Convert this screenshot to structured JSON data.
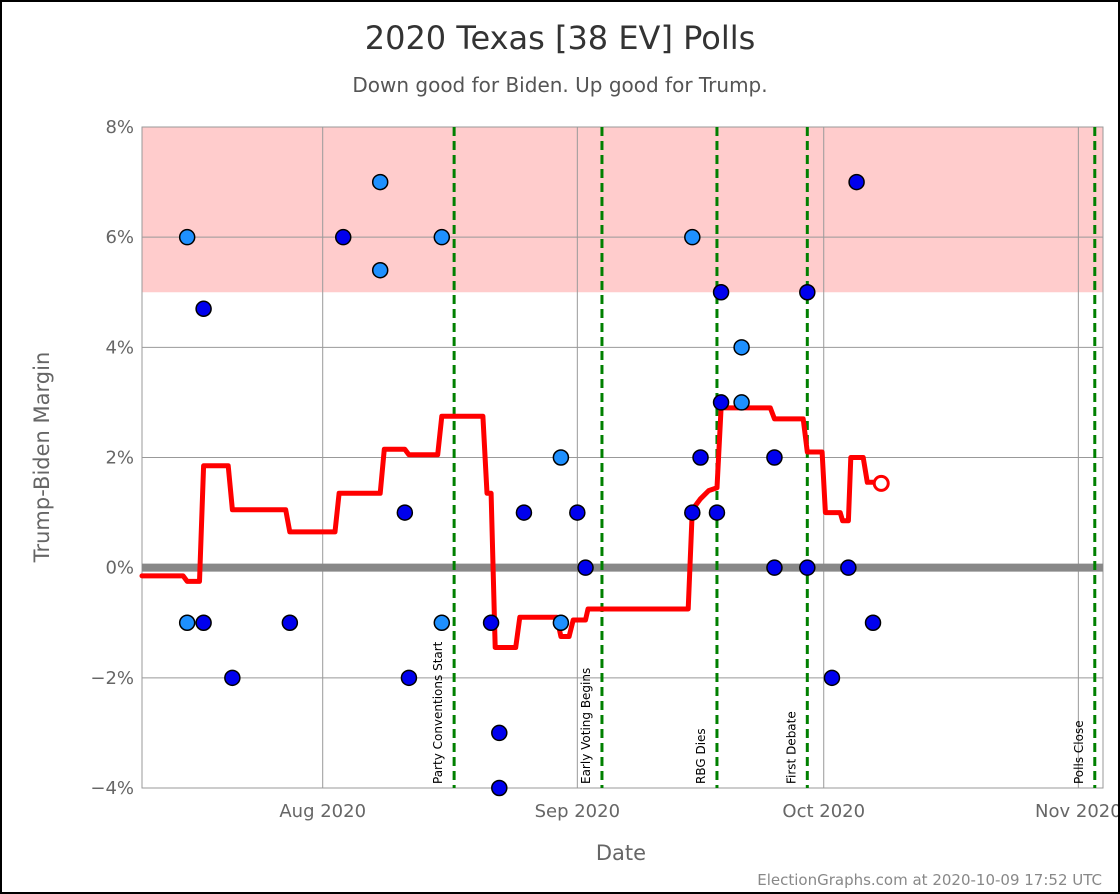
{
  "chart_data": {
    "type": "scatter",
    "title": "2020 Texas [38 EV] Polls",
    "subtitle": "Down good for Biden. Up good for Trump.",
    "xlabel": "Date",
    "ylabel": "Trump-Biden Margin",
    "credit": "ElectionGraphs.com at 2020-10-09 17:52 UTC",
    "x_range": [
      "2020-07-10",
      "2020-11-04"
    ],
    "ylim": [
      -4,
      8
    ],
    "y_ticks": [
      {
        "value": 8,
        "label": "8%"
      },
      {
        "value": 6,
        "label": "6%"
      },
      {
        "value": 4,
        "label": "4%"
      },
      {
        "value": 2,
        "label": "2%"
      },
      {
        "value": 0,
        "label": "0%"
      },
      {
        "value": -2,
        "label": "−2%"
      },
      {
        "value": -4,
        "label": "−4%"
      }
    ],
    "x_ticks": [
      {
        "date": "2020-08-01",
        "label": "Aug 2020"
      },
      {
        "date": "2020-09-01",
        "label": "Sep 2020"
      },
      {
        "date": "2020-10-01",
        "label": "Oct 2020"
      },
      {
        "date": "2020-11-01",
        "label": "Nov 2020"
      }
    ],
    "shaded_band": {
      "from": 5,
      "to": 8,
      "color": "#ffcccc"
    },
    "zero_band_color": "#888888",
    "events": [
      {
        "date": "2020-08-17",
        "label": "Party Conventions Start"
      },
      {
        "date": "2020-09-04",
        "label": "Early Voting Begins"
      },
      {
        "date": "2020-09-18",
        "label": "RBG Dies"
      },
      {
        "date": "2020-09-29",
        "label": "First Debate"
      },
      {
        "date": "2020-11-03",
        "label": "Polls Close"
      }
    ],
    "event_color": "#008000",
    "series": [
      {
        "color": "#1e90ff",
        "points": [
          {
            "x": "2020-07-15.5",
            "y": 6
          },
          {
            "x": "2020-07-15.5",
            "y": -1
          },
          {
            "x": "2020-08-08",
            "y": 7
          },
          {
            "x": "2020-08-08",
            "y": 5.4
          },
          {
            "x": "2020-08-15.5",
            "y": 6
          },
          {
            "x": "2020-08-15.5",
            "y": -1
          },
          {
            "x": "2020-08-30",
            "y": -1
          },
          {
            "x": "2020-08-30",
            "y": 2
          },
          {
            "x": "2020-09-15",
            "y": 6
          },
          {
            "x": "2020-09-21",
            "y": 4
          },
          {
            "x": "2020-09-21",
            "y": 3
          }
        ]
      },
      {
        "color": "#0000ee",
        "points": [
          {
            "x": "2020-07-17.5",
            "y": 4.7
          },
          {
            "x": "2020-07-17.5",
            "y": -1
          },
          {
            "x": "2020-07-21",
            "y": -2
          },
          {
            "x": "2020-07-28",
            "y": -1
          },
          {
            "x": "2020-08-03.5",
            "y": 6
          },
          {
            "x": "2020-08-11",
            "y": 1
          },
          {
            "x": "2020-08-11.5",
            "y": -2
          },
          {
            "x": "2020-08-21.5",
            "y": -1
          },
          {
            "x": "2020-08-22.5",
            "y": -3
          },
          {
            "x": "2020-08-22.5",
            "y": -4
          },
          {
            "x": "2020-08-25.5",
            "y": 1
          },
          {
            "x": "2020-09-01",
            "y": 1
          },
          {
            "x": "2020-09-02",
            "y": 0
          },
          {
            "x": "2020-09-15",
            "y": 1
          },
          {
            "x": "2020-09-16",
            "y": 2
          },
          {
            "x": "2020-09-18",
            "y": 1
          },
          {
            "x": "2020-09-18.5",
            "y": 5
          },
          {
            "x": "2020-09-18.5",
            "y": 3
          },
          {
            "x": "2020-09-25",
            "y": 2
          },
          {
            "x": "2020-09-25",
            "y": 0
          },
          {
            "x": "2020-09-29",
            "y": 5
          },
          {
            "x": "2020-09-29",
            "y": 0
          },
          {
            "x": "2020-10-02",
            "y": -2
          },
          {
            "x": "2020-10-04",
            "y": 0
          },
          {
            "x": "2020-10-05",
            "y": 7
          },
          {
            "x": "2020-10-07",
            "y": -1
          }
        ]
      }
    ],
    "average_line": {
      "color": "#ff0000",
      "points": [
        {
          "x": "2020-07-10",
          "y": -0.15
        },
        {
          "x": "2020-07-15",
          "y": -0.15
        },
        {
          "x": "2020-07-15.5",
          "y": -0.25
        },
        {
          "x": "2020-07-17",
          "y": -0.25
        },
        {
          "x": "2020-07-17.5",
          "y": 1.85
        },
        {
          "x": "2020-07-20.5",
          "y": 1.85
        },
        {
          "x": "2020-07-21",
          "y": 1.05
        },
        {
          "x": "2020-07-27.5",
          "y": 1.05
        },
        {
          "x": "2020-07-28",
          "y": 0.65
        },
        {
          "x": "2020-08-02.5",
          "y": 0.65
        },
        {
          "x": "2020-08-03",
          "y": 1.35
        },
        {
          "x": "2020-08-08",
          "y": 1.35
        },
        {
          "x": "2020-08-08.5",
          "y": 2.15
        },
        {
          "x": "2020-08-11",
          "y": 2.15
        },
        {
          "x": "2020-08-11.5",
          "y": 2.05
        },
        {
          "x": "2020-08-15",
          "y": 2.05
        },
        {
          "x": "2020-08-15.5",
          "y": 2.75
        },
        {
          "x": "2020-08-20.5",
          "y": 2.75
        },
        {
          "x": "2020-08-21",
          "y": 1.35
        },
        {
          "x": "2020-08-21.5",
          "y": 1.35
        },
        {
          "x": "2020-08-22",
          "y": -1.45
        },
        {
          "x": "2020-08-24.5",
          "y": -1.45
        },
        {
          "x": "2020-08-25",
          "y": -0.9
        },
        {
          "x": "2020-08-29.5",
          "y": -0.9
        },
        {
          "x": "2020-08-30",
          "y": -1.25
        },
        {
          "x": "2020-08-31",
          "y": -1.25
        },
        {
          "x": "2020-08-31.5",
          "y": -0.95
        },
        {
          "x": "2020-09-02",
          "y": -0.95
        },
        {
          "x": "2020-09-02.3",
          "y": -0.75
        },
        {
          "x": "2020-09-14.5",
          "y": -0.75
        },
        {
          "x": "2020-09-15",
          "y": 1.05
        },
        {
          "x": "2020-09-16",
          "y": 1.25
        },
        {
          "x": "2020-09-17",
          "y": 1.4
        },
        {
          "x": "2020-09-18",
          "y": 1.45
        },
        {
          "x": "2020-09-18.5",
          "y": 2.9
        },
        {
          "x": "2020-09-24.5",
          "y": 2.9
        },
        {
          "x": "2020-09-25",
          "y": 2.7
        },
        {
          "x": "2020-09-28.5",
          "y": 2.7
        },
        {
          "x": "2020-09-29",
          "y": 2.1
        },
        {
          "x": "2020-09-30.8",
          "y": 2.1
        },
        {
          "x": "2020-10-01.2",
          "y": 1.0
        },
        {
          "x": "2020-10-03",
          "y": 1.0
        },
        {
          "x": "2020-10-03.3",
          "y": 0.85
        },
        {
          "x": "2020-10-04",
          "y": 0.85
        },
        {
          "x": "2020-10-04.3",
          "y": 2.0
        },
        {
          "x": "2020-10-05.8",
          "y": 2.0
        },
        {
          "x": "2020-10-06.3",
          "y": 1.55
        },
        {
          "x": "2020-10-07.3",
          "y": 1.55
        }
      ],
      "end_marker": {
        "x": "2020-10-08",
        "y": 1.53
      }
    }
  }
}
